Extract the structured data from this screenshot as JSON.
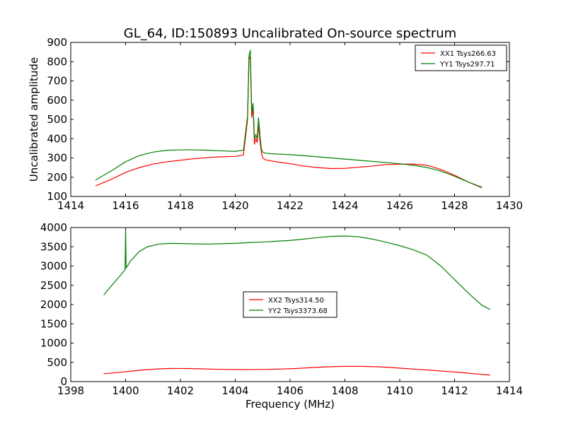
{
  "chart_data": [
    {
      "type": "line",
      "title": "GL_64, ID:150893 Uncalibrated On-source spectrum",
      "xlabel": "",
      "ylabel": "Uncalibrated amplitude",
      "xlim": [
        1414,
        1430
      ],
      "ylim": [
        100,
        900
      ],
      "xticks": [
        1414,
        1416,
        1418,
        1420,
        1422,
        1424,
        1426,
        1428,
        1430
      ],
      "yticks": [
        100,
        200,
        300,
        400,
        500,
        600,
        700,
        800,
        900
      ],
      "legend_position": "top-right",
      "series": [
        {
          "name": "XX1 Tsys266.63",
          "color": "#ff0000",
          "x": [
            1414.9,
            1415.5,
            1416,
            1416.5,
            1417,
            1417.5,
            1418,
            1418.5,
            1419,
            1419.5,
            1420,
            1420.3,
            1420.45,
            1420.5,
            1420.55,
            1420.6,
            1420.65,
            1420.7,
            1420.75,
            1420.8,
            1420.85,
            1420.9,
            1420.95,
            1421.0,
            1421.1,
            1421.3,
            1421.6,
            1422,
            1422.5,
            1423,
            1423.5,
            1424,
            1424.5,
            1425,
            1425.5,
            1426,
            1426.5,
            1427,
            1427.5,
            1428,
            1428.5,
            1429
          ],
          "values": [
            155,
            190,
            225,
            250,
            268,
            280,
            288,
            296,
            302,
            306,
            308,
            315,
            500,
            810,
            830,
            510,
            560,
            370,
            400,
            380,
            470,
            390,
            330,
            300,
            290,
            285,
            278,
            270,
            258,
            250,
            245,
            246,
            252,
            258,
            265,
            268,
            268,
            262,
            240,
            210,
            175,
            145
          ]
        },
        {
          "name": "YY1 Tsys297.71",
          "color": "#008000",
          "x": [
            1414.9,
            1415.5,
            1416,
            1416.5,
            1417,
            1417.5,
            1418,
            1418.5,
            1419,
            1419.5,
            1420,
            1420.3,
            1420.45,
            1420.5,
            1420.55,
            1420.6,
            1420.65,
            1420.7,
            1420.75,
            1420.8,
            1420.85,
            1420.9,
            1420.95,
            1421.0,
            1421.1,
            1421.3,
            1421.6,
            1422,
            1422.5,
            1423,
            1423.5,
            1424,
            1424.5,
            1425,
            1425.5,
            1426,
            1426.5,
            1427,
            1427.5,
            1428,
            1428.5,
            1429
          ],
          "values": [
            185,
            235,
            280,
            312,
            330,
            340,
            342,
            342,
            340,
            337,
            334,
            340,
            520,
            830,
            860,
            540,
            585,
            400,
            420,
            400,
            510,
            420,
            350,
            330,
            325,
            322,
            320,
            317,
            312,
            306,
            300,
            294,
            288,
            282,
            276,
            270,
            262,
            250,
            232,
            205,
            175,
            148
          ]
        }
      ]
    },
    {
      "type": "line",
      "title": "",
      "xlabel": "Frequency (MHz)",
      "ylabel": "",
      "xlim": [
        1398,
        1414
      ],
      "ylim": [
        0,
        4000
      ],
      "xticks": [
        1398,
        1400,
        1402,
        1404,
        1406,
        1408,
        1410,
        1412,
        1414
      ],
      "yticks": [
        0,
        500,
        1000,
        1500,
        2000,
        2500,
        3000,
        3500,
        4000
      ],
      "legend_position": "center",
      "series": [
        {
          "name": "XX2 Tsys314.50",
          "color": "#ff0000",
          "x": [
            1399.2,
            1399.7,
            1400.2,
            1400.7,
            1401.2,
            1401.7,
            1402.2,
            1402.7,
            1403.2,
            1403.7,
            1404.2,
            1404.7,
            1405.2,
            1405.7,
            1406.2,
            1406.7,
            1407.2,
            1407.7,
            1408.2,
            1408.7,
            1409.2,
            1409.7,
            1410.2,
            1410.7,
            1411.2,
            1411.7,
            1412.2,
            1412.7,
            1413.3
          ],
          "values": [
            205,
            235,
            270,
            305,
            330,
            342,
            340,
            332,
            322,
            315,
            312,
            313,
            318,
            327,
            340,
            360,
            378,
            392,
            398,
            395,
            385,
            365,
            340,
            315,
            292,
            265,
            238,
            205,
            170
          ]
        },
        {
          "name": "YY2 Tsys3373.68",
          "color": "#008000",
          "x": [
            1399.2,
            1399.5,
            1399.8,
            1399.98,
            1400.0,
            1400.02,
            1400.2,
            1400.5,
            1400.8,
            1401.2,
            1401.6,
            1402.0,
            1402.5,
            1403.0,
            1403.5,
            1404.0,
            1404.5,
            1405.0,
            1405.5,
            1406.0,
            1406.5,
            1407.0,
            1407.5,
            1408.0,
            1408.5,
            1409.0,
            1409.5,
            1410.0,
            1410.5,
            1411.0,
            1411.5,
            1412.0,
            1412.5,
            1413.0,
            1413.3
          ],
          "values": [
            2250,
            2500,
            2750,
            2900,
            3950,
            2950,
            3150,
            3380,
            3500,
            3570,
            3590,
            3585,
            3575,
            3570,
            3580,
            3590,
            3610,
            3625,
            3645,
            3665,
            3700,
            3740,
            3770,
            3780,
            3760,
            3700,
            3620,
            3530,
            3420,
            3280,
            3000,
            2650,
            2300,
            1980,
            1870
          ]
        }
      ]
    }
  ]
}
